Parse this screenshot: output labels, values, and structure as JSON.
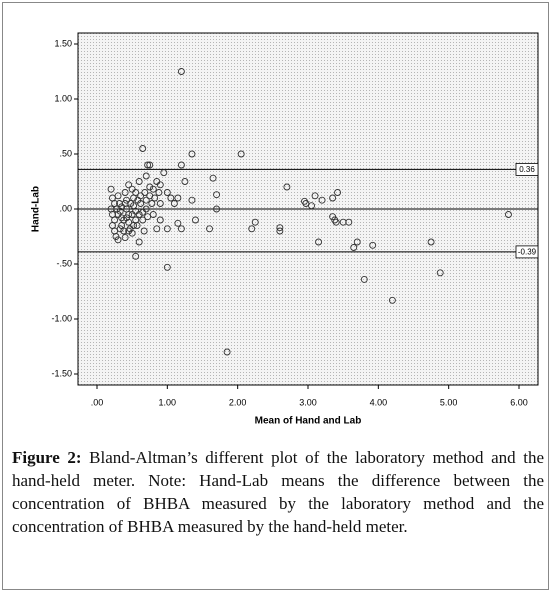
{
  "chart_data": {
    "type": "scatter",
    "xlabel": "Mean of Hand and Lab",
    "ylabel": "Hand-Lab",
    "xlim": [
      -0.27,
      6.27
    ],
    "ylim": [
      -1.6,
      1.6
    ],
    "xticks": [
      {
        "value": 0,
        "label": ".00"
      },
      {
        "value": 1,
        "label": "1.00"
      },
      {
        "value": 2,
        "label": "2.00"
      },
      {
        "value": 3,
        "label": "3.00"
      },
      {
        "value": 4,
        "label": "4.00"
      },
      {
        "value": 5,
        "label": "5.00"
      },
      {
        "value": 6,
        "label": "6.00"
      }
    ],
    "yticks": [
      {
        "value": 1.5,
        "label": "1.50"
      },
      {
        "value": 1,
        "label": "1.00"
      },
      {
        "value": 0.5,
        "label": ".50"
      },
      {
        "value": 0,
        "label": ".00"
      },
      {
        "value": -0.5,
        "label": "-.50"
      },
      {
        "value": -1,
        "label": "-1.00"
      },
      {
        "value": -1.5,
        "label": "-1.50"
      }
    ],
    "reference_lines": [
      {
        "value": 0.36,
        "label": "0.36"
      },
      {
        "value": 0
      },
      {
        "value": -0.39,
        "label": "-0.39"
      }
    ],
    "marker_color": "#333333",
    "x": [
      1.2,
      0.65,
      0.75,
      0.72,
      1.2,
      1.35,
      2.05,
      1.65,
      1.7,
      1.7,
      1.6,
      2.25,
      2.2,
      2.6,
      2.6,
      2.7,
      2.95,
      2.97,
      3.05,
      3.1,
      3.2,
      3.35,
      3.42,
      3.35,
      3.38,
      3.4,
      3.5,
      3.58,
      3.15,
      3.7,
      3.65,
      3.92,
      3.8,
      4.2,
      4.75,
      4.88,
      5.85,
      1.85,
      1.0,
      0.55,
      1.0,
      1.05,
      1.15,
      1.15,
      1.25,
      1.1,
      0.95,
      0.9,
      1.35,
      1.0,
      1.2,
      1.4,
      0.2,
      0.22,
      0.25,
      0.2,
      0.22,
      0.25,
      0.22,
      0.25,
      0.27,
      0.3,
      0.3,
      0.32,
      0.33,
      0.35,
      0.35,
      0.38,
      0.4,
      0.4,
      0.42,
      0.42,
      0.45,
      0.45,
      0.47,
      0.5,
      0.5,
      0.52,
      0.52,
      0.55,
      0.55,
      0.57,
      0.6,
      0.6,
      0.62,
      0.62,
      0.65,
      0.65,
      0.68,
      0.7,
      0.7,
      0.72,
      0.75,
      0.75,
      0.78,
      0.8,
      0.8,
      0.82,
      0.85,
      0.88,
      0.9,
      0.9,
      0.35,
      0.38,
      0.48,
      0.58,
      0.3,
      0.28,
      0.55,
      0.45,
      0.67,
      0.85,
      0.42,
      0.5,
      0.6,
      0.4,
      0.33,
      0.7,
      0.45,
      0.52
    ],
    "values": [
      1.25,
      0.55,
      0.4,
      0.4,
      0.4,
      0.5,
      0.5,
      0.28,
      0.13,
      0.0,
      -0.18,
      -0.12,
      -0.18,
      -0.17,
      -0.2,
      0.2,
      0.07,
      0.05,
      0.03,
      0.12,
      0.08,
      0.1,
      0.15,
      -0.07,
      -0.1,
      -0.12,
      -0.12,
      -0.12,
      -0.3,
      -0.3,
      -0.35,
      -0.33,
      -0.64,
      -0.83,
      -0.3,
      -0.58,
      -0.05,
      -1.3,
      -0.53,
      -0.43,
      0.15,
      0.1,
      0.1,
      -0.13,
      0.25,
      0.05,
      0.33,
      0.22,
      0.08,
      -0.18,
      -0.18,
      -0.1,
      0.18,
      0.1,
      0.05,
      0.0,
      -0.05,
      -0.1,
      -0.15,
      -0.2,
      -0.25,
      -0.28,
      0.12,
      0.05,
      -0.02,
      -0.08,
      -0.15,
      -0.2,
      -0.26,
      0.15,
      0.08,
      0.0,
      -0.05,
      -0.12,
      -0.18,
      -0.22,
      0.18,
      0.1,
      0.03,
      -0.02,
      -0.1,
      -0.15,
      -0.3,
      0.25,
      0.12,
      0.05,
      -0.03,
      -0.1,
      0.15,
      0.08,
      0.0,
      -0.07,
      0.2,
      0.12,
      0.05,
      -0.05,
      0.18,
      0.1,
      0.25,
      0.15,
      0.05,
      -0.1,
      0.02,
      -0.1,
      0.05,
      0.08,
      -0.05,
      0.0,
      0.15,
      0.22,
      -0.2,
      -0.18,
      -0.08,
      -0.05,
      -0.05,
      0.05,
      -0.18,
      0.3,
      -0.2,
      -0.15
    ]
  },
  "caption": {
    "label": "Figure 2:",
    "text": "Bland-Altman’s different plot of the laboratory method and the hand-held meter. Note: Hand-Lab means the difference between the concentration of BHBA measured by the laboratory method and the concentration of BHBA measured by the hand-held meter."
  }
}
